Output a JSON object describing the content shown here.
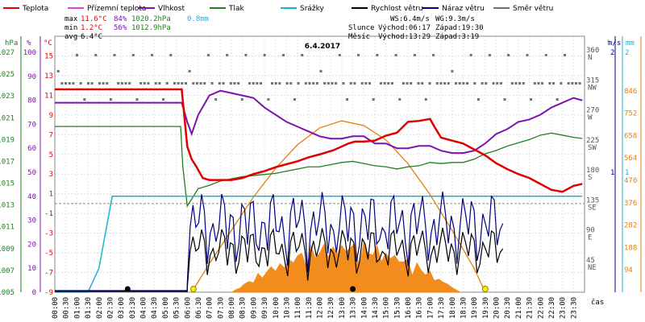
{
  "chart_data": {
    "type": "line",
    "title": "6.4.2017",
    "xlabel": "čas",
    "x_ticks": [
      "00:00",
      "00:30",
      "01:00",
      "01:30",
      "02:00",
      "02:30",
      "03:00",
      "03:30",
      "04:00",
      "04:30",
      "05:00",
      "05:30",
      "06:00",
      "06:30",
      "07:00",
      "07:30",
      "08:00",
      "08:30",
      "09:00",
      "09:30",
      "10:00",
      "10:30",
      "11:00",
      "11:30",
      "12:00",
      "12:30",
      "13:00",
      "13:30",
      "14:00",
      "14:30",
      "15:00",
      "15:30",
      "16:00",
      "16:30",
      "17:00",
      "17:30",
      "18:00",
      "18:30",
      "19:00",
      "19:30",
      "20:00",
      "20:30",
      "21:00",
      "21:30",
      "22:00",
      "22:30",
      "23:00",
      "23:30"
    ],
    "legend": [
      {
        "name": "Teplota",
        "color": "#e00000"
      },
      {
        "name": "Přízemní teplota",
        "color": "#e040e0"
      },
      {
        "name": "Vlhkost",
        "color": "#8010b0"
      },
      {
        "name": "Tlak",
        "color": "#208020"
      },
      {
        "name": "Srážky",
        "color": "#20b0d0"
      },
      {
        "name": "Rychlost větru",
        "color": "#000000"
      },
      {
        "name": "Náraz větru",
        "color": "#000080"
      },
      {
        "name": "Směr větru",
        "color": "#707070"
      }
    ],
    "stats": {
      "max": {
        "label": "max",
        "temp": "11.6°C",
        "hum": "84%",
        "press": "1020.2hPa",
        "rain": "0.8mm"
      },
      "min": {
        "label": "min",
        "temp": "1.2°C",
        "hum": "56%",
        "press": "1012.9hPa"
      },
      "avg": {
        "label": "avg",
        "temp": "6.4°C"
      },
      "ws": "WS:6.4m/s",
      "wg": "WG:9.3m/s",
      "sun": {
        "label": "Slunce",
        "rise": "Východ:06:17",
        "set": "Západ:19:30"
      },
      "moon": {
        "label": "Měsíc",
        "rise": "Východ:13:29",
        "set": "Západ:3:19"
      }
    },
    "axes": {
      "hpa": {
        "unit": "hPa",
        "ticks": [
          "1027",
          "1025",
          "1023",
          "1021",
          "1019",
          "1017",
          "1015",
          "1013",
          "1011",
          "1009",
          "1007",
          "1005"
        ],
        "range": [
          1005,
          1027
        ]
      },
      "pct": {
        "unit": "%",
        "ticks": [
          "100",
          "90",
          "80",
          "70",
          "60",
          "50",
          "40",
          "30",
          "20",
          "10",
          "0"
        ],
        "range": [
          0,
          100
        ]
      },
      "temp": {
        "unit": "°C",
        "ticks": [
          "15",
          "13",
          "11",
          "9",
          "7",
          "5",
          "3",
          "1",
          "-1",
          "-3",
          "-5",
          "-7",
          "-9"
        ],
        "range": [
          -9,
          17
        ]
      },
      "dir": {
        "unit": "°",
        "ticks": [
          "360",
          "315",
          "270",
          "225",
          "180",
          "135",
          "90",
          "45"
        ],
        "labels": [
          "N",
          "NW",
          "W",
          "SW",
          "S",
          "SE",
          "E",
          "NE"
        ],
        "range": [
          0,
          360
        ]
      },
      "wind": {
        "unit": "m/s",
        "ticks": [
          "2",
          "1"
        ],
        "range": [
          0,
          2
        ]
      },
      "rain": {
        "unit": "mm",
        "ticks": [
          "2",
          "1"
        ]
      },
      "solar": {
        "unit": "W/m²",
        "ticks": [
          "846",
          "752",
          "658",
          "564",
          "470",
          "376",
          "282",
          "188",
          "94"
        ],
        "range": [
          0,
          940
        ]
      }
    },
    "series": [
      {
        "name": "Teplota",
        "unit": "°C",
        "x": [
          0,
          5.75,
          6.0,
          6.2,
          6.4,
          6.7,
          7,
          7.5,
          8,
          8.5,
          9,
          9.5,
          10,
          10.5,
          11,
          11.5,
          12,
          12.3,
          12.6,
          13,
          13.3,
          13.6,
          14,
          14.5,
          15,
          15.5,
          16,
          16.5,
          17,
          17.2,
          17.5,
          18,
          18.5,
          19,
          19.5,
          20,
          20.5,
          21,
          21.5,
          22,
          22.5,
          23,
          23.5,
          23.9
        ],
        "y": [
          11.6,
          11.6,
          5.8,
          4.5,
          3.8,
          2.6,
          2.4,
          2.4,
          2.4,
          2.6,
          3.0,
          3.3,
          3.7,
          4.0,
          4.3,
          4.7,
          5.0,
          5.2,
          5.4,
          5.8,
          6.1,
          6.3,
          6.3,
          6.4,
          6.9,
          7.2,
          8.3,
          8.4,
          8.6,
          7.8,
          6.7,
          6.4,
          6.1,
          5.5,
          4.9,
          4.1,
          3.5,
          3.0,
          2.6,
          2.0,
          1.4,
          1.2,
          1.8,
          2.0
        ]
      },
      {
        "name": "Vlhkost",
        "unit": "%",
        "x": [
          0,
          5.75,
          6.0,
          6.2,
          6.5,
          7,
          7.5,
          8,
          8.5,
          9,
          9.5,
          10,
          10.5,
          11,
          11.5,
          12,
          12.5,
          13,
          13.5,
          14,
          14.5,
          15,
          15.5,
          16,
          16.5,
          17,
          17.5,
          18,
          18.5,
          19,
          19.5,
          20,
          20.5,
          21,
          21.5,
          22,
          22.5,
          23,
          23.5,
          23.9
        ],
        "y": [
          79,
          79,
          71,
          66,
          74,
          82,
          84,
          83,
          82,
          81,
          77,
          74,
          71,
          69,
          67,
          65,
          64,
          64,
          65,
          65,
          62,
          62,
          60,
          60,
          61,
          61,
          59,
          58,
          58,
          59,
          62,
          66,
          68,
          71,
          72,
          74,
          77,
          79,
          81,
          80
        ]
      },
      {
        "name": "Tlak",
        "unit": "hPa",
        "x": [
          0,
          5.7,
          5.8,
          6.0,
          6.5,
          7,
          7.5,
          8,
          8.5,
          9,
          9.5,
          10,
          10.5,
          11,
          11.5,
          12,
          12.5,
          13,
          13.5,
          14,
          14.5,
          15,
          15.5,
          16,
          16.5,
          17,
          17.5,
          18,
          18.5,
          19,
          19.5,
          20,
          20.5,
          21,
          21.5,
          22,
          22.5,
          23,
          23.5,
          23.9
        ],
        "y": [
          1020.2,
          1020.2,
          1016.5,
          1012.9,
          1014.5,
          1014.8,
          1015.2,
          1015.4,
          1015.6,
          1015.7,
          1015.8,
          1015.9,
          1016.1,
          1016.3,
          1016.5,
          1016.5,
          1016.7,
          1016.9,
          1017.0,
          1016.8,
          1016.6,
          1016.5,
          1016.3,
          1016.5,
          1016.6,
          1016.9,
          1016.8,
          1016.9,
          1016.9,
          1017.2,
          1017.7,
          1018.0,
          1018.4,
          1018.7,
          1019.0,
          1019.4,
          1019.6,
          1019.4,
          1019.2,
          1019.1
        ]
      },
      {
        "name": "Srážky",
        "unit": "mm",
        "x": [
          0,
          1.5,
          2.0,
          2.4,
          2.6,
          3.0,
          23.9
        ],
        "y": [
          0,
          0,
          0.2,
          0.6,
          0.8,
          0.8,
          0.8
        ]
      },
      {
        "name": "Slunce",
        "unit": "W/m²",
        "x": [
          6.2,
          7,
          8,
          9,
          10,
          11,
          12,
          13,
          14,
          15,
          16,
          17,
          18,
          19,
          19.5
        ],
        "y": [
          0,
          120,
          260,
          400,
          520,
          620,
          690,
          720,
          700,
          640,
          540,
          410,
          260,
          100,
          0
        ]
      }
    ]
  }
}
